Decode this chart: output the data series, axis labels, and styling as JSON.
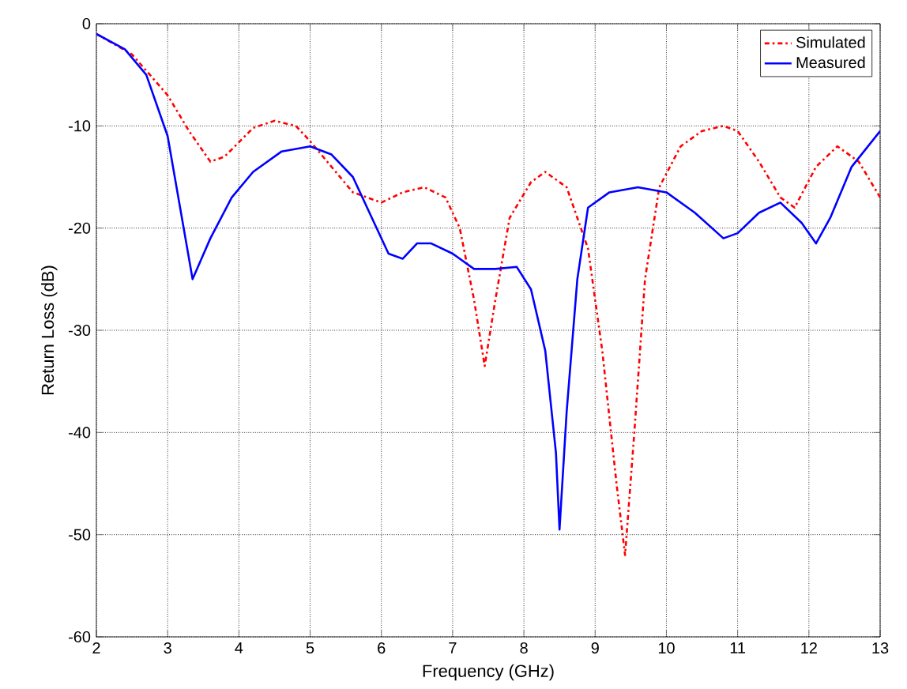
{
  "chart_data": {
    "type": "line",
    "xlabel": "Frequency (GHz)",
    "ylabel": "Return Loss (dB)",
    "xlim": [
      2,
      13
    ],
    "ylim": [
      -60,
      0
    ],
    "xticks": [
      2,
      3,
      4,
      5,
      6,
      7,
      8,
      9,
      10,
      11,
      12,
      13
    ],
    "yticks": [
      -60,
      -50,
      -40,
      -30,
      -20,
      -10,
      0
    ],
    "grid": true,
    "legend": "top right",
    "marker": "none",
    "series": [
      {
        "name": "Simulated",
        "color": "#ff0000",
        "line_style": "dashdot",
        "x": [
          2,
          2.5,
          3,
          3.3,
          3.6,
          3.8,
          4.2,
          4.5,
          4.8,
          5,
          5.3,
          5.6,
          6,
          6.3,
          6.6,
          6.9,
          7.1,
          7.3,
          7.45,
          7.6,
          7.8,
          8.1,
          8.3,
          8.6,
          8.9,
          9.1,
          9.3,
          9.42,
          9.55,
          9.7,
          9.9,
          10.2,
          10.5,
          10.8,
          11,
          11.3,
          11.6,
          11.8,
          12.1,
          12.4,
          12.7,
          13
        ],
        "values": [
          -1,
          -3,
          -7,
          -10.5,
          -13.5,
          -13,
          -10.2,
          -9.5,
          -10,
          -11.5,
          -14,
          -16.5,
          -17.5,
          -16.5,
          -16,
          -17,
          -20,
          -27,
          -33.5,
          -27,
          -19,
          -15.5,
          -14.5,
          -16,
          -22,
          -32,
          -45,
          -52,
          -40,
          -25,
          -16,
          -12,
          -10.5,
          -10,
          -10.5,
          -13.5,
          -17,
          -18,
          -14,
          -12,
          -13.5,
          -17
        ]
      },
      {
        "name": "Measured",
        "color": "#0000ff",
        "line_style": "solid",
        "x": [
          2,
          2.4,
          2.7,
          3,
          3.2,
          3.35,
          3.6,
          3.9,
          4.2,
          4.6,
          5,
          5.3,
          5.6,
          5.9,
          6.1,
          6.3,
          6.5,
          6.7,
          7,
          7.3,
          7.6,
          7.9,
          8.1,
          8.3,
          8.45,
          8.5,
          8.6,
          8.75,
          8.9,
          9.2,
          9.6,
          10,
          10.4,
          10.8,
          11,
          11.3,
          11.6,
          11.9,
          12.1,
          12.3,
          12.6,
          13
        ],
        "values": [
          -1,
          -2.5,
          -5,
          -11,
          -19,
          -25,
          -21,
          -17,
          -14.5,
          -12.5,
          -12,
          -12.8,
          -15,
          -19.5,
          -22.5,
          -23,
          -21.5,
          -21.5,
          -22.5,
          -24,
          -24,
          -23.8,
          -26,
          -32,
          -42,
          -49.5,
          -38,
          -25,
          -18,
          -16.5,
          -16,
          -16.5,
          -18.5,
          -21,
          -20.5,
          -18.5,
          -17.5,
          -19.5,
          -21.5,
          -19,
          -14,
          -10.5
        ]
      }
    ]
  }
}
